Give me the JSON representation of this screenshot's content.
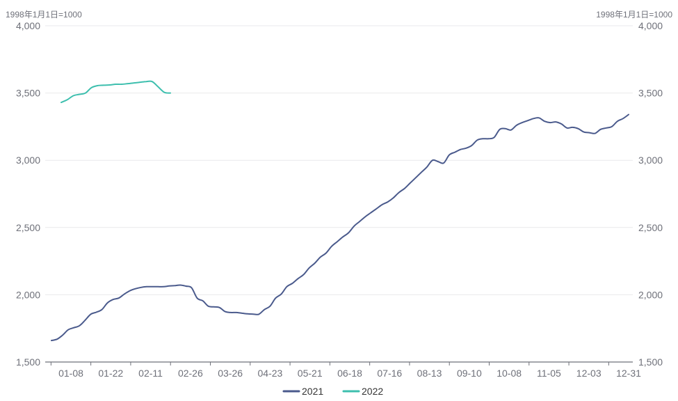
{
  "chart_data": {
    "type": "line",
    "unit_left": "1998年1月1日=1000",
    "unit_right": "1998年1月1日=1000",
    "ylim": [
      1500,
      4000
    ],
    "y_ticks": [
      "4,000",
      "3,500",
      "3,000",
      "2,500",
      "2,000",
      "1,500"
    ],
    "y_tick_values": [
      4000,
      3500,
      3000,
      2500,
      2000,
      1500
    ],
    "x_ticks": [
      "01-08",
      "01-22",
      "02-11",
      "02-26",
      "03-26",
      "04-23",
      "05-21",
      "06-18",
      "07-16",
      "08-13",
      "09-10",
      "10-08",
      "11-05",
      "12-03",
      "12-31"
    ],
    "grid": true,
    "legend_position": "bottom",
    "series": [
      {
        "name": "2021",
        "color": "#4a5a8c",
        "values": [
          1660,
          1670,
          1700,
          1740,
          1755,
          1770,
          1810,
          1855,
          1870,
          1890,
          1940,
          1965,
          1975,
          2005,
          2030,
          2045,
          2055,
          2060,
          2060,
          2060,
          2060,
          2065,
          2068,
          2072,
          2064,
          2052,
          1975,
          1955,
          1915,
          1910,
          1905,
          1875,
          1868,
          1868,
          1863,
          1858,
          1856,
          1855,
          1890,
          1915,
          1975,
          2005,
          2060,
          2085,
          2120,
          2150,
          2200,
          2235,
          2280,
          2310,
          2360,
          2395,
          2430,
          2460,
          2510,
          2545,
          2580,
          2610,
          2640,
          2670,
          2690,
          2720,
          2760,
          2790,
          2830,
          2870,
          2910,
          2950,
          3000,
          2990,
          2980,
          3040,
          3060,
          3080,
          3090,
          3110,
          3150,
          3160,
          3160,
          3170,
          3230,
          3235,
          3225,
          3260,
          3280,
          3295,
          3310,
          3315,
          3290,
          3280,
          3285,
          3270,
          3240,
          3245,
          3235,
          3210,
          3205,
          3200,
          3230,
          3240,
          3250,
          3290,
          3310,
          3340
        ]
      },
      {
        "name": "2022",
        "color": "#3dbfae",
        "values": [
          3430,
          3450,
          3480,
          3490,
          3500,
          3540,
          3555,
          3558,
          3560,
          3565,
          3565,
          3570,
          3575,
          3580,
          3585,
          3585,
          3545,
          3505,
          3500
        ]
      }
    ]
  }
}
